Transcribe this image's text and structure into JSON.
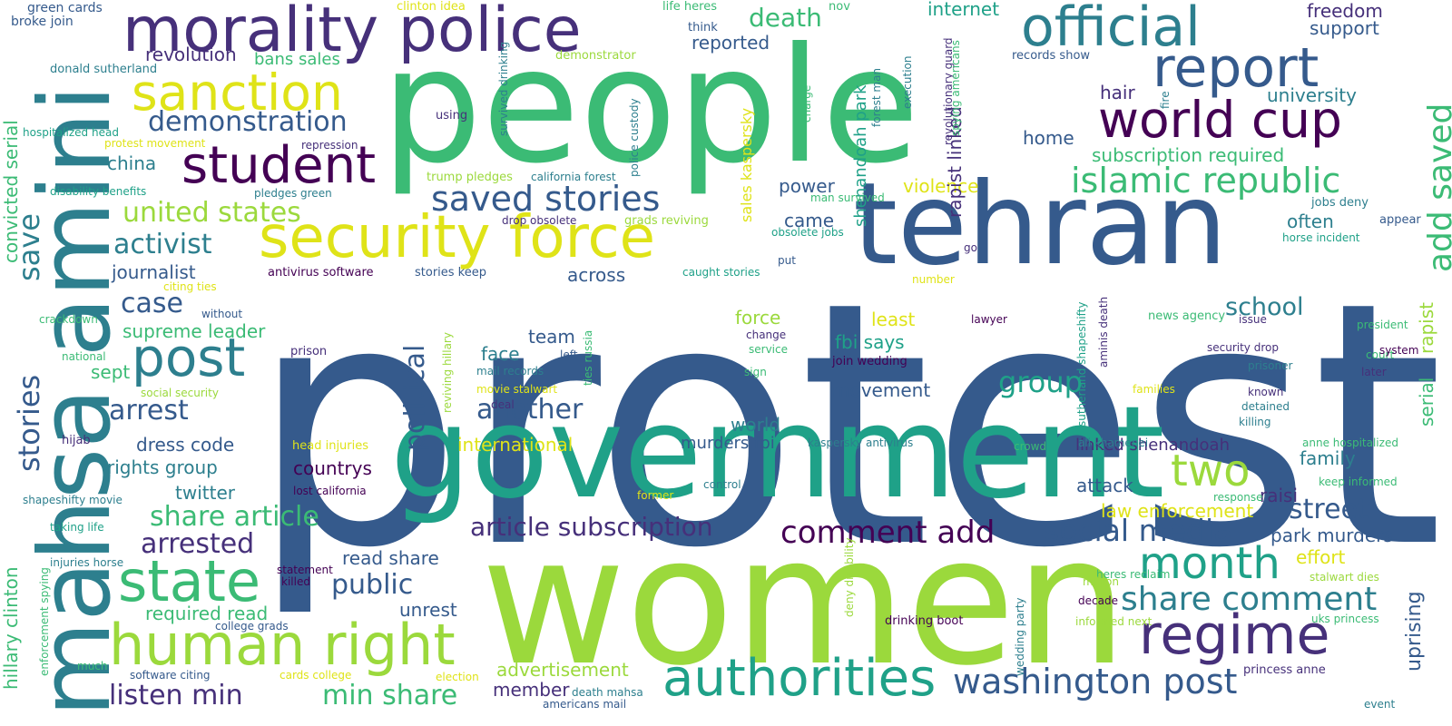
{
  "palette": {
    "navy": "#355a8c",
    "purple": "#46307a",
    "teal": "#2d7f8e",
    "sea": "#1fa188",
    "green": "#3bbb75",
    "lime": "#9bd93c",
    "yellow": "#dfe318",
    "dark": "#440154"
  },
  "words": [
    {
      "text": "protest",
      "color": "#355a8c"
    },
    {
      "text": "people",
      "color": "#3bbb75"
    },
    {
      "text": "women",
      "color": "#9bd93c"
    },
    {
      "text": "government",
      "color": "#1fa188"
    },
    {
      "text": "tehran",
      "color": "#355a8c"
    },
    {
      "text": "mahsa amini",
      "color": "#2d7f8e"
    },
    {
      "text": "morality police",
      "color": "#46307a"
    },
    {
      "text": "security force",
      "color": "#dfe318"
    },
    {
      "text": "official",
      "color": "#2d7f8e"
    },
    {
      "text": "report",
      "color": "#355a8c"
    },
    {
      "text": "world cup",
      "color": "#440154"
    },
    {
      "text": "human right",
      "color": "#9bd93c"
    },
    {
      "text": "authorities",
      "color": "#1fa188"
    },
    {
      "text": "regime",
      "color": "#46307a"
    },
    {
      "text": "state",
      "color": "#3bbb75"
    },
    {
      "text": "student",
      "color": "#440154"
    },
    {
      "text": "sanction",
      "color": "#dfe318"
    },
    {
      "text": "post",
      "color": "#2d7f8e"
    },
    {
      "text": "month",
      "color": "#1fa188"
    },
    {
      "text": "two",
      "color": "#9bd93c"
    },
    {
      "text": "saved stories",
      "color": "#355a8c"
    },
    {
      "text": "islamic republic",
      "color": "#3bbb75"
    },
    {
      "text": "washington post",
      "color": "#355a8c"
    },
    {
      "text": "share comment",
      "color": "#2d7f8e"
    },
    {
      "text": "social media",
      "color": "#355a8c"
    },
    {
      "text": "comment add",
      "color": "#440154"
    },
    {
      "text": "article subscription",
      "color": "#46307a"
    },
    {
      "text": "demonstration",
      "color": "#355a8c"
    },
    {
      "text": "united states",
      "color": "#9bd93c"
    },
    {
      "text": "activist",
      "color": "#2d7f8e"
    },
    {
      "text": "arrest",
      "color": "#355a8c"
    },
    {
      "text": "arrested",
      "color": "#46307a"
    },
    {
      "text": "share article",
      "color": "#3bbb75"
    },
    {
      "text": "another",
      "color": "#355a8c"
    },
    {
      "text": "political",
      "color": "#355a8c"
    },
    {
      "text": "group",
      "color": "#1fa188"
    },
    {
      "text": "street",
      "color": "#355a8c"
    },
    {
      "text": "school",
      "color": "#2d7f8e"
    },
    {
      "text": "public",
      "color": "#355a8c"
    },
    {
      "text": "listen min",
      "color": "#46307a"
    },
    {
      "text": "min share",
      "color": "#3bbb75"
    },
    {
      "text": "case",
      "color": "#355a8c"
    },
    {
      "text": "death",
      "color": "#3bbb75"
    },
    {
      "text": "revolution",
      "color": "#46307a"
    },
    {
      "text": "journalist",
      "color": "#355a8c"
    },
    {
      "text": "supreme leader",
      "color": "#3bbb75"
    },
    {
      "text": "rights group",
      "color": "#2d7f8e"
    },
    {
      "text": "dress code",
      "color": "#355a8c"
    },
    {
      "text": "twitter",
      "color": "#2d7f8e"
    },
    {
      "text": "china",
      "color": "#2d7f8e"
    },
    {
      "text": "sept",
      "color": "#3bbb75"
    },
    {
      "text": "bans sales",
      "color": "#3bbb75"
    },
    {
      "text": "required read",
      "color": "#3bbb75"
    },
    {
      "text": "read share",
      "color": "#355a8c"
    },
    {
      "text": "unrest",
      "color": "#355a8c"
    },
    {
      "text": "team",
      "color": "#355a8c"
    },
    {
      "text": "face",
      "color": "#2d7f8e"
    },
    {
      "text": "across",
      "color": "#355a8c"
    },
    {
      "text": "international",
      "color": "#dfe318"
    },
    {
      "text": "countrys",
      "color": "#440154"
    },
    {
      "text": "advertisement",
      "color": "#9bd93c"
    },
    {
      "text": "member",
      "color": "#46307a"
    },
    {
      "text": "internet",
      "color": "#1fa188"
    },
    {
      "text": "reported",
      "color": "#355a8c"
    },
    {
      "text": "violence",
      "color": "#dfe318"
    },
    {
      "text": "power",
      "color": "#355a8c"
    },
    {
      "text": "came",
      "color": "#355a8c"
    },
    {
      "text": "force",
      "color": "#9bd93c"
    },
    {
      "text": "least",
      "color": "#dfe318"
    },
    {
      "text": "fbi says",
      "color": "#1fa188"
    },
    {
      "text": "movement",
      "color": "#355a8c"
    },
    {
      "text": "world",
      "color": "#2d7f8e"
    },
    {
      "text": "murders fbi",
      "color": "#355a8c"
    },
    {
      "text": "hair",
      "color": "#46307a"
    },
    {
      "text": "home",
      "color": "#355a8c"
    },
    {
      "text": "subscription required",
      "color": "#3bbb75"
    },
    {
      "text": "freedom",
      "color": "#46307a"
    },
    {
      "text": "support",
      "color": "#355a8c"
    },
    {
      "text": "university",
      "color": "#2d7f8e"
    },
    {
      "text": "often",
      "color": "#2d7f8e"
    },
    {
      "text": "family",
      "color": "#2d7f8e"
    },
    {
      "text": "attack",
      "color": "#355a8c"
    },
    {
      "text": "linked shenandoah",
      "color": "#46307a"
    },
    {
      "text": "raisi",
      "color": "#46307a"
    },
    {
      "text": "law enforcement",
      "color": "#dfe318"
    },
    {
      "text": "park murders",
      "color": "#355a8c"
    },
    {
      "text": "effort",
      "color": "#dfe318"
    },
    {
      "text": "add saved",
      "color": "#3bbb75"
    },
    {
      "text": "serial",
      "color": "#3bbb75"
    },
    {
      "text": "rapist",
      "color": "#9bd93c"
    },
    {
      "text": "uprising",
      "color": "#355a8c"
    },
    {
      "text": "stories",
      "color": "#355a8c"
    },
    {
      "text": "save",
      "color": "#2d7f8e"
    },
    {
      "text": "convicted serial",
      "color": "#3bbb75"
    },
    {
      "text": "hillary clinton",
      "color": "#3bbb75"
    },
    {
      "text": "rapist linked",
      "color": "#46307a"
    },
    {
      "text": "shenandoah park",
      "color": "#1fa188"
    },
    {
      "text": "sales kaspersky",
      "color": "#dfe318"
    },
    {
      "text": "green cards",
      "color": "#355a8c"
    },
    {
      "text": "broke join",
      "color": "#355a8c"
    },
    {
      "text": "clinton idea",
      "color": "#dfe318"
    },
    {
      "text": "life heres",
      "color": "#3bbb75"
    },
    {
      "text": "nov",
      "color": "#3bbb75"
    },
    {
      "text": "think",
      "color": "#355a8c"
    },
    {
      "text": "demonstrator",
      "color": "#9bd93c"
    },
    {
      "text": "donald sutherland",
      "color": "#2d7f8e"
    },
    {
      "text": "hospitalized head",
      "color": "#1fa188"
    },
    {
      "text": "protest movement",
      "color": "#dfe318"
    },
    {
      "text": "repression",
      "color": "#46307a"
    },
    {
      "text": "disability benefits",
      "color": "#1fa188"
    },
    {
      "text": "pledges green",
      "color": "#2d7f8e"
    },
    {
      "text": "using",
      "color": "#46307a"
    },
    {
      "text": "trump pledges",
      "color": "#9bd93c"
    },
    {
      "text": "california forest",
      "color": "#2d7f8e"
    },
    {
      "text": "drop obsolete",
      "color": "#46307a"
    },
    {
      "text": "grads reviving",
      "color": "#9bd93c"
    },
    {
      "text": "obsolete jobs",
      "color": "#1fa188"
    },
    {
      "text": "jobs deny",
      "color": "#2d7f8e"
    },
    {
      "text": "appear",
      "color": "#355a8c"
    },
    {
      "text": "horse incident",
      "color": "#1fa188"
    },
    {
      "text": "records show",
      "color": "#355a8c"
    },
    {
      "text": "man survived",
      "color": "#3bbb75"
    },
    {
      "text": "citing ties",
      "color": "#dfe318"
    },
    {
      "text": "antivirus software",
      "color": "#440154"
    },
    {
      "text": "stories keep",
      "color": "#355a8c"
    },
    {
      "text": "caught stories",
      "color": "#1fa188"
    },
    {
      "text": "put",
      "color": "#355a8c"
    },
    {
      "text": "go",
      "color": "#46307a"
    },
    {
      "text": "number",
      "color": "#dfe318"
    },
    {
      "text": "crackdown",
      "color": "#3bbb75"
    },
    {
      "text": "without",
      "color": "#355a8c"
    },
    {
      "text": "national",
      "color": "#3bbb75"
    },
    {
      "text": "prison",
      "color": "#46307a"
    },
    {
      "text": "social security",
      "color": "#9bd93c"
    },
    {
      "text": "hijab",
      "color": "#46307a"
    },
    {
      "text": "head injuries",
      "color": "#dfe318"
    },
    {
      "text": "shapeshifty movie",
      "color": "#2d7f8e"
    },
    {
      "text": "taking life",
      "color": "#1fa188"
    },
    {
      "text": "injuries horse",
      "color": "#2d7f8e"
    },
    {
      "text": "much",
      "color": "#3bbb75"
    },
    {
      "text": "software citing",
      "color": "#355a8c"
    },
    {
      "text": "college grads",
      "color": "#355a8c"
    },
    {
      "text": "cards college",
      "color": "#dfe318"
    },
    {
      "text": "statement",
      "color": "#440154"
    },
    {
      "text": "killed",
      "color": "#440154"
    },
    {
      "text": "lost california",
      "color": "#440154"
    },
    {
      "text": "election",
      "color": "#dfe318"
    },
    {
      "text": "deal",
      "color": "#46307a"
    },
    {
      "text": "change",
      "color": "#46307a"
    },
    {
      "text": "service",
      "color": "#3bbb75"
    },
    {
      "text": "sign",
      "color": "#3bbb75"
    },
    {
      "text": "left",
      "color": "#355a8c"
    },
    {
      "text": "mail records",
      "color": "#2d7f8e"
    },
    {
      "text": "movie stalwart",
      "color": "#dfe318"
    },
    {
      "text": "lawyer",
      "color": "#440154"
    },
    {
      "text": "join wedding",
      "color": "#440154"
    },
    {
      "text": "kaspersky antivirus",
      "color": "#2d7f8e"
    },
    {
      "text": "crowd",
      "color": "#3bbb75"
    },
    {
      "text": "control",
      "color": "#2d7f8e"
    },
    {
      "text": "former",
      "color": "#dfe318"
    },
    {
      "text": "drinking boot",
      "color": "#440154"
    },
    {
      "text": "death mahsa",
      "color": "#2d7f8e"
    },
    {
      "text": "americans mail",
      "color": "#355a8c"
    },
    {
      "text": "news agency",
      "color": "#3bbb75"
    },
    {
      "text": "issue",
      "color": "#46307a"
    },
    {
      "text": "security drop",
      "color": "#46307a"
    },
    {
      "text": "prisoner",
      "color": "#2d7f8e"
    },
    {
      "text": "president",
      "color": "#3bbb75"
    },
    {
      "text": "court",
      "color": "#3bbb75"
    },
    {
      "text": "system",
      "color": "#440154"
    },
    {
      "text": "later",
      "color": "#46307a"
    },
    {
      "text": "known",
      "color": "#46307a"
    },
    {
      "text": "detained",
      "color": "#2d7f8e"
    },
    {
      "text": "killing",
      "color": "#2d7f8e"
    },
    {
      "text": "families",
      "color": "#dfe318"
    },
    {
      "text": "anne hospitalized",
      "color": "#3bbb75"
    },
    {
      "text": "ali khamenei",
      "color": "#2d7f8e"
    },
    {
      "text": "keep informed",
      "color": "#3bbb75"
    },
    {
      "text": "response",
      "color": "#3bbb75"
    },
    {
      "text": "heres reclaim",
      "color": "#3bbb75"
    },
    {
      "text": "million",
      "color": "#9bd93c"
    },
    {
      "text": "stalwart dies",
      "color": "#9bd93c"
    },
    {
      "text": "decade",
      "color": "#440154"
    },
    {
      "text": "uks princess",
      "color": "#3bbb75"
    },
    {
      "text": "informed next",
      "color": "#9bd93c"
    },
    {
      "text": "princess anne",
      "color": "#46307a"
    },
    {
      "text": "event",
      "color": "#2d7f8e"
    },
    {
      "text": "enforcement spying",
      "color": "#3bbb75"
    },
    {
      "text": "survived drinking",
      "color": "#2d7f8e"
    },
    {
      "text": "police custody",
      "color": "#2d7f8e"
    },
    {
      "text": "ties russia",
      "color": "#3bbb75"
    },
    {
      "text": "reviving hillary",
      "color": "#9bd93c"
    },
    {
      "text": "charge",
      "color": "#3bbb75"
    },
    {
      "text": "forest man",
      "color": "#2d7f8e"
    },
    {
      "text": "execution",
      "color": "#2d7f8e"
    },
    {
      "text": "revolutionary guard",
      "color": "#46307a"
    },
    {
      "text": "spying americans",
      "color": "#3bbb75"
    },
    {
      "text": "fire",
      "color": "#2d7f8e"
    },
    {
      "text": "sutherland shapeshifty",
      "color": "#1fa188"
    },
    {
      "text": "aminis death",
      "color": "#46307a"
    },
    {
      "text": "deny disability",
      "color": "#9bd93c"
    },
    {
      "text": "wedding party",
      "color": "#2d7f8e"
    }
  ]
}
